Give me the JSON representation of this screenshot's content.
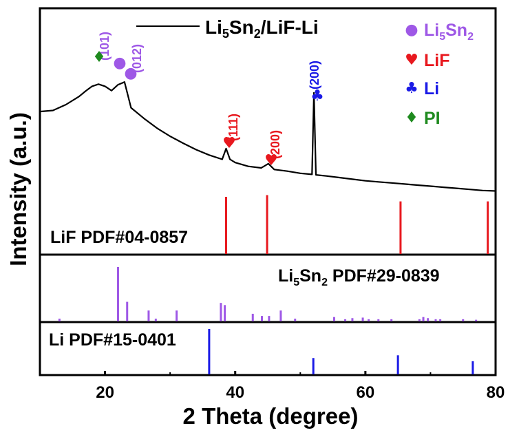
{
  "chart_data": {
    "type": "line",
    "title": "Li5Sn2/LiF-Li",
    "xlabel": "2 Theta (degree)",
    "ylabel": "Intensity (a.u.)",
    "xlim": [
      10,
      80
    ],
    "x_ticks": [
      "20",
      "40",
      "60",
      "80"
    ],
    "legend_position": "top-right",
    "legend": [
      {
        "symbol": "●",
        "text": "Li",
        "sub1": "5",
        "mid": "Sn",
        "sub2": "2",
        "color": "#9e58e6"
      },
      {
        "symbol": "♥",
        "text": "LiF",
        "color": "#e8181e"
      },
      {
        "symbol": "♣",
        "text": "Li",
        "color": "#1a1ae6"
      },
      {
        "symbol": "♦",
        "text": "PI",
        "color": "#1e8a1e"
      }
    ],
    "measured_series": {
      "name": "Li5Sn2/LiF-Li",
      "x": [
        10,
        12,
        14,
        16,
        17,
        18,
        19,
        20,
        21,
        22,
        23,
        24,
        26,
        28,
        30,
        32,
        34,
        36,
        38,
        38.6,
        39.2,
        40,
        42,
        44,
        45.1,
        46,
        48,
        50,
        51.8,
        52.1,
        52.4,
        54,
        56,
        58,
        60,
        62,
        64,
        66,
        68,
        70,
        72,
        74,
        76,
        78,
        80
      ],
      "y": [
        1.55,
        1.57,
        1.68,
        1.83,
        1.93,
        2.02,
        2.06,
        2.02,
        1.94,
        2.05,
        2.1,
        1.62,
        1.42,
        1.24,
        1.09,
        0.96,
        0.84,
        0.74,
        0.66,
        0.86,
        0.66,
        0.6,
        0.53,
        0.5,
        0.58,
        0.47,
        0.44,
        0.4,
        0.38,
        1.9,
        0.37,
        0.35,
        0.32,
        0.29,
        0.26,
        0.24,
        0.22,
        0.2,
        0.18,
        0.16,
        0.14,
        0.12,
        0.1,
        0.08,
        0.07
      ]
    },
    "peak_annotations": [
      {
        "x": 22.0,
        "label": "(101)",
        "symbol": "●",
        "color": "#9e58e6"
      },
      {
        "x": 23.6,
        "label": "(012)",
        "symbol": "●",
        "color": "#9e58e6"
      },
      {
        "x": 38.6,
        "label": "(111)",
        "symbol": "♥",
        "color": "#e8181e"
      },
      {
        "x": 45.1,
        "label": "(200)",
        "symbol": "♥",
        "color": "#e8181e"
      },
      {
        "x": 52.2,
        "label": "(200)",
        "symbol": "♣",
        "color": "#1a1ae6"
      },
      {
        "x": 19.3,
        "label": "",
        "symbol": "♦",
        "color": "#1e8a1e"
      }
    ],
    "references": [
      {
        "name": "LiF PDF#04-0857",
        "color": "#e8181e",
        "peaks": [
          {
            "x": 38.6,
            "i": 1.0
          },
          {
            "x": 44.9,
            "i": 1.03
          },
          {
            "x": 65.4,
            "i": 0.92
          },
          {
            "x": 78.8,
            "i": 0.92
          }
        ]
      },
      {
        "name": "Li5Sn2 PDF#29-0839",
        "name_parts": {
          "a": "Li",
          "s1": "5",
          "b": "Sn",
          "s2": "2",
          "c": " PDF#29-0839"
        },
        "color": "#9e58e6",
        "peaks": [
          {
            "x": 13.0,
            "i": 0.05
          },
          {
            "x": 22.0,
            "i": 1.0
          },
          {
            "x": 23.4,
            "i": 0.36
          },
          {
            "x": 26.7,
            "i": 0.2
          },
          {
            "x": 27.8,
            "i": 0.05
          },
          {
            "x": 31.0,
            "i": 0.2
          },
          {
            "x": 37.8,
            "i": 0.34
          },
          {
            "x": 38.4,
            "i": 0.3
          },
          {
            "x": 42.7,
            "i": 0.14
          },
          {
            "x": 44.1,
            "i": 0.1
          },
          {
            "x": 45.2,
            "i": 0.1
          },
          {
            "x": 47.0,
            "i": 0.2
          },
          {
            "x": 49.2,
            "i": 0.05
          },
          {
            "x": 55.2,
            "i": 0.08
          },
          {
            "x": 56.9,
            "i": 0.04
          },
          {
            "x": 58.0,
            "i": 0.06
          },
          {
            "x": 59.6,
            "i": 0.07
          },
          {
            "x": 60.5,
            "i": 0.04
          },
          {
            "x": 62.0,
            "i": 0.04
          },
          {
            "x": 64.0,
            "i": 0.04
          },
          {
            "x": 68.3,
            "i": 0.04
          },
          {
            "x": 68.9,
            "i": 0.08
          },
          {
            "x": 69.6,
            "i": 0.06
          },
          {
            "x": 70.8,
            "i": 0.04
          },
          {
            "x": 71.5,
            "i": 0.04
          },
          {
            "x": 75.0,
            "i": 0.04
          },
          {
            "x": 77.0,
            "i": 0.03
          }
        ]
      },
      {
        "name": "Li PDF#15-0401",
        "color": "#1a1ae6",
        "peaks": [
          {
            "x": 36.0,
            "i": 1.0
          },
          {
            "x": 52.0,
            "i": 0.36
          },
          {
            "x": 65.0,
            "i": 0.42
          },
          {
            "x": 76.5,
            "i": 0.29
          }
        ]
      }
    ]
  }
}
